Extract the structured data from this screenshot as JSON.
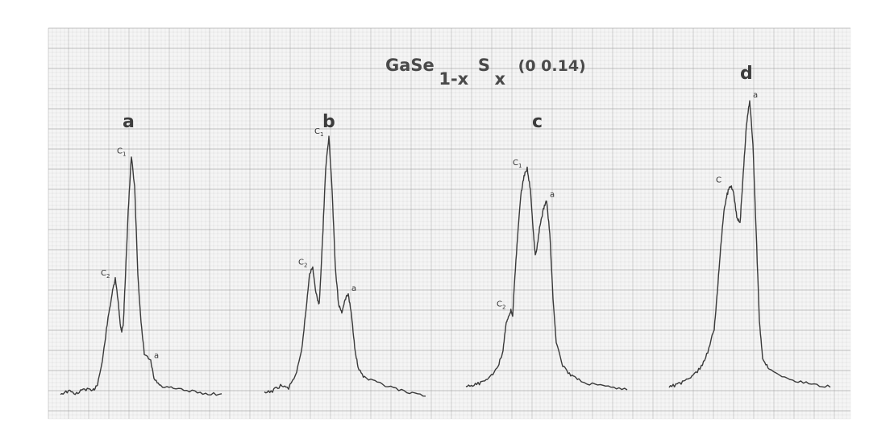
{
  "chart_data": {
    "type": "line",
    "title_parts": [
      "GaSe",
      "1-x",
      "S",
      "x",
      "(0 0.14)"
    ],
    "background": "#f5f5f5",
    "grid": true,
    "grid_color": "#9a9a9a",
    "trace_color": "#3a3a3a",
    "panels": [
      {
        "label": "a",
        "peaks": [
          {
            "label": "C2",
            "x": 0.34,
            "y": 0.48
          },
          {
            "label": "C1",
            "x": 0.44,
            "y": 0.97
          },
          {
            "label": "a",
            "x": 0.56,
            "y": 0.15
          }
        ],
        "points": [
          [
            0.0,
            0.02
          ],
          [
            0.05,
            0.03
          ],
          [
            0.1,
            0.02
          ],
          [
            0.15,
            0.04
          ],
          [
            0.2,
            0.03
          ],
          [
            0.23,
            0.06
          ],
          [
            0.26,
            0.15
          ],
          [
            0.29,
            0.3
          ],
          [
            0.32,
            0.42
          ],
          [
            0.34,
            0.48
          ],
          [
            0.36,
            0.38
          ],
          [
            0.37,
            0.3
          ],
          [
            0.38,
            0.27
          ],
          [
            0.39,
            0.3
          ],
          [
            0.4,
            0.45
          ],
          [
            0.42,
            0.75
          ],
          [
            0.44,
            0.97
          ],
          [
            0.46,
            0.85
          ],
          [
            0.48,
            0.5
          ],
          [
            0.5,
            0.3
          ],
          [
            0.52,
            0.18
          ],
          [
            0.56,
            0.15
          ],
          [
            0.58,
            0.08
          ],
          [
            0.62,
            0.05
          ],
          [
            0.7,
            0.04
          ],
          [
            0.8,
            0.03
          ],
          [
            0.9,
            0.02
          ],
          [
            1.0,
            0.02
          ]
        ]
      },
      {
        "label": "b",
        "peaks": [
          {
            "label": "C2",
            "x": 0.3,
            "y": 0.5
          },
          {
            "label": "C1",
            "x": 0.4,
            "y": 1.0
          },
          {
            "label": "a",
            "x": 0.52,
            "y": 0.4
          }
        ],
        "points": [
          [
            0.0,
            0.02
          ],
          [
            0.05,
            0.03
          ],
          [
            0.1,
            0.05
          ],
          [
            0.15,
            0.04
          ],
          [
            0.2,
            0.1
          ],
          [
            0.23,
            0.18
          ],
          [
            0.26,
            0.35
          ],
          [
            0.28,
            0.48
          ],
          [
            0.3,
            0.5
          ],
          [
            0.32,
            0.4
          ],
          [
            0.34,
            0.36
          ],
          [
            0.36,
            0.6
          ],
          [
            0.38,
            0.88
          ],
          [
            0.4,
            1.0
          ],
          [
            0.42,
            0.8
          ],
          [
            0.44,
            0.5
          ],
          [
            0.46,
            0.36
          ],
          [
            0.48,
            0.33
          ],
          [
            0.5,
            0.38
          ],
          [
            0.52,
            0.4
          ],
          [
            0.54,
            0.32
          ],
          [
            0.56,
            0.2
          ],
          [
            0.58,
            0.12
          ],
          [
            0.62,
            0.08
          ],
          [
            0.7,
            0.06
          ],
          [
            0.8,
            0.04
          ],
          [
            0.9,
            0.02
          ],
          [
            1.0,
            0.01
          ]
        ]
      },
      {
        "label": "c",
        "peaks": [
          {
            "label": "C2",
            "x": 0.28,
            "y": 0.35
          },
          {
            "label": "C1",
            "x": 0.38,
            "y": 0.93
          },
          {
            "label": "a",
            "x": 0.5,
            "y": 0.8
          }
        ],
        "points": [
          [
            0.0,
            0.03
          ],
          [
            0.05,
            0.04
          ],
          [
            0.1,
            0.05
          ],
          [
            0.15,
            0.07
          ],
          [
            0.2,
            0.12
          ],
          [
            0.23,
            0.18
          ],
          [
            0.25,
            0.3
          ],
          [
            0.27,
            0.33
          ],
          [
            0.28,
            0.35
          ],
          [
            0.29,
            0.32
          ],
          [
            0.3,
            0.45
          ],
          [
            0.32,
            0.65
          ],
          [
            0.34,
            0.82
          ],
          [
            0.36,
            0.9
          ],
          [
            0.38,
            0.93
          ],
          [
            0.4,
            0.84
          ],
          [
            0.42,
            0.65
          ],
          [
            0.43,
            0.57
          ],
          [
            0.44,
            0.6
          ],
          [
            0.46,
            0.7
          ],
          [
            0.48,
            0.76
          ],
          [
            0.5,
            0.8
          ],
          [
            0.52,
            0.66
          ],
          [
            0.54,
            0.4
          ],
          [
            0.56,
            0.22
          ],
          [
            0.6,
            0.12
          ],
          [
            0.65,
            0.08
          ],
          [
            0.7,
            0.06
          ],
          [
            0.8,
            0.04
          ],
          [
            0.9,
            0.03
          ],
          [
            1.0,
            0.02
          ]
        ]
      },
      {
        "label": "d",
        "peaks": [
          {
            "label": "C",
            "x": 0.38,
            "y": 0.71
          },
          {
            "label": "a",
            "x": 0.5,
            "y": 1.0
          }
        ],
        "points": [
          [
            0.0,
            0.02
          ],
          [
            0.05,
            0.03
          ],
          [
            0.1,
            0.04
          ],
          [
            0.15,
            0.06
          ],
          [
            0.2,
            0.09
          ],
          [
            0.24,
            0.14
          ],
          [
            0.28,
            0.22
          ],
          [
            0.3,
            0.35
          ],
          [
            0.32,
            0.5
          ],
          [
            0.34,
            0.62
          ],
          [
            0.36,
            0.68
          ],
          [
            0.38,
            0.71
          ],
          [
            0.4,
            0.69
          ],
          [
            0.42,
            0.6
          ],
          [
            0.44,
            0.58
          ],
          [
            0.46,
            0.75
          ],
          [
            0.48,
            0.92
          ],
          [
            0.5,
            1.0
          ],
          [
            0.52,
            0.85
          ],
          [
            0.54,
            0.55
          ],
          [
            0.56,
            0.25
          ],
          [
            0.58,
            0.12
          ],
          [
            0.62,
            0.08
          ],
          [
            0.7,
            0.06
          ],
          [
            0.8,
            0.04
          ],
          [
            0.9,
            0.03
          ],
          [
            1.0,
            0.02
          ]
        ]
      }
    ]
  }
}
